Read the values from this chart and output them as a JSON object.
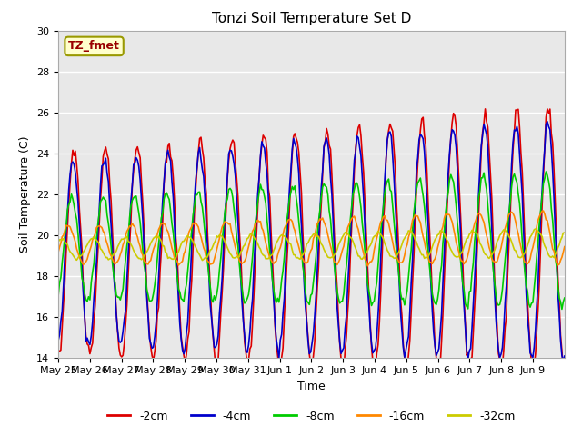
{
  "title": "Tonzi Soil Temperature Set D",
  "xlabel": "Time",
  "ylabel": "Soil Temperature (C)",
  "ylim": [
    14,
    30
  ],
  "yticks": [
    14,
    16,
    18,
    20,
    22,
    24,
    26,
    28,
    30
  ],
  "x_labels": [
    "May 25",
    "May 26",
    "May 27",
    "May 28",
    "May 29",
    "May 30",
    "May 31",
    "Jun 1",
    "Jun 2",
    "Jun 3",
    "Jun 4",
    "Jun 5",
    "Jun 6",
    "Jun 7",
    "Jun 8",
    "Jun 9"
  ],
  "annotation_text": "TZ_fmet",
  "annotation_bg": "#ffffcc",
  "annotation_border": "#999900",
  "annotation_text_color": "#990000",
  "series_labels": [
    "-2cm",
    "-4cm",
    "-8cm",
    "-16cm",
    "-32cm"
  ],
  "series_colors": [
    "#dd0000",
    "#0000cc",
    "#00cc00",
    "#ff8800",
    "#cccc00"
  ],
  "series_linewidths": [
    1.2,
    1.2,
    1.2,
    1.2,
    1.2
  ],
  "background_color": "#e8e8e8",
  "grid_color": "#ffffff",
  "title_fontsize": 11,
  "label_fontsize": 9,
  "tick_fontsize": 8
}
